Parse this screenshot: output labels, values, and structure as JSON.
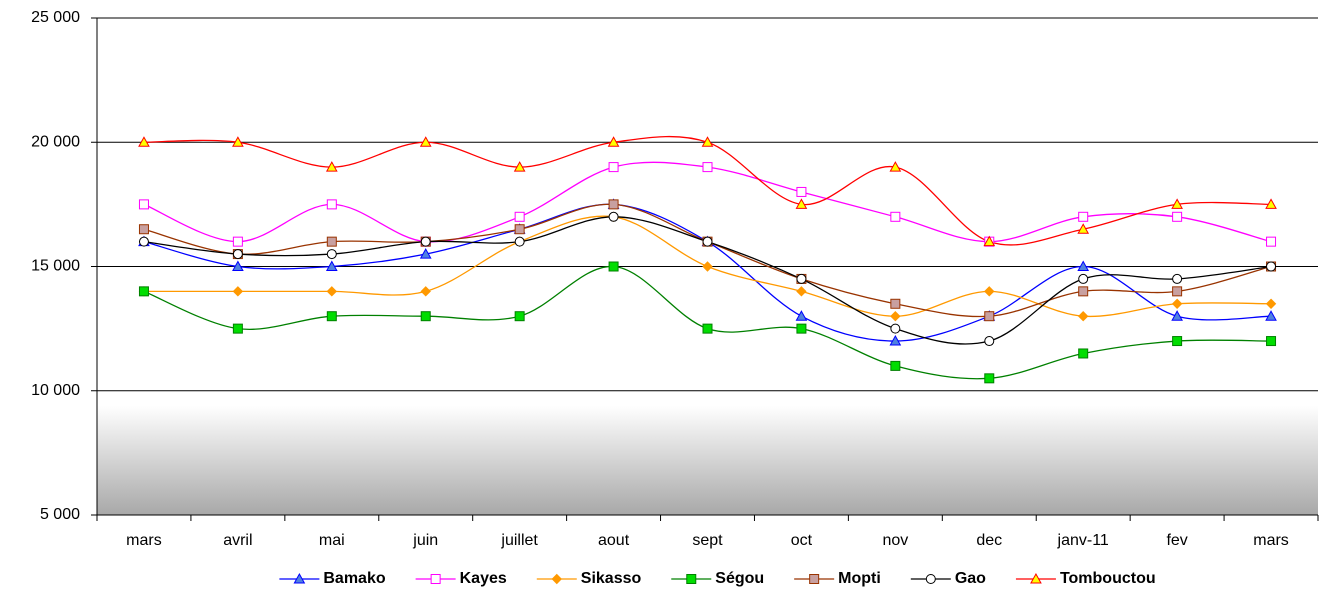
{
  "chart_data": {
    "type": "line",
    "categories": [
      "mars",
      "avril",
      "mai",
      "juin",
      "juillet",
      "aout",
      "sept",
      "oct",
      "nov",
      "dec",
      "janv-11",
      "fev",
      "mars"
    ],
    "ylim": [
      5000,
      25000
    ],
    "yticks": [
      {
        "value": 5000,
        "label": "5 000"
      },
      {
        "value": 10000,
        "label": "10 000"
      },
      {
        "value": 15000,
        "label": "15 000"
      },
      {
        "value": 20000,
        "label": "20 000"
      },
      {
        "value": 25000,
        "label": "25 000"
      }
    ],
    "grid": true,
    "legend": "bottom",
    "series": [
      {
        "name": "Bamako",
        "color": "#0000ff",
        "marker": "triangle",
        "marker_fill": "#4f81e0",
        "values": [
          16000,
          15000,
          15000,
          15500,
          16500,
          17500,
          16000,
          13000,
          12000,
          13000,
          15000,
          13000,
          13000
        ]
      },
      {
        "name": "Kayes",
        "color": "#ff00ff",
        "marker": "square",
        "marker_fill": "#ffffff",
        "values": [
          17500,
          16000,
          17500,
          16000,
          17000,
          19000,
          19000,
          18000,
          17000,
          16000,
          17000,
          17000,
          16000
        ]
      },
      {
        "name": "Sikasso",
        "color": "#ff9900",
        "marker": "diamond",
        "marker_fill": "#ff9900",
        "values": [
          14000,
          14000,
          14000,
          14000,
          16000,
          17000,
          15000,
          14000,
          13000,
          14000,
          13000,
          13500,
          13500
        ]
      },
      {
        "name": "Ségou",
        "color": "#008000",
        "marker": "square",
        "marker_fill": "#00dd00",
        "values": [
          14000,
          12500,
          13000,
          13000,
          13000,
          15000,
          12500,
          12500,
          11000,
          10500,
          11500,
          12000,
          12000
        ]
      },
      {
        "name": "Mopti",
        "color": "#993300",
        "marker": "square",
        "marker_fill": "#c8a0a0",
        "values": [
          16500,
          15500,
          16000,
          16000,
          16500,
          17500,
          16000,
          14500,
          13500,
          13000,
          14000,
          14000,
          15000
        ]
      },
      {
        "name": "Gao",
        "color": "#000000",
        "marker": "circle",
        "marker_fill": "#ffffff",
        "values": [
          16000,
          15500,
          15500,
          16000,
          16000,
          17000,
          16000,
          14500,
          12500,
          12000,
          14500,
          14500,
          15000
        ]
      },
      {
        "name": "Tombouctou",
        "color": "#ff0000",
        "marker": "triangle",
        "marker_fill": "#ffff00",
        "values": [
          20000,
          20000,
          19000,
          20000,
          19000,
          20000,
          20000,
          17500,
          19000,
          16000,
          16500,
          17500,
          17500
        ]
      }
    ]
  }
}
